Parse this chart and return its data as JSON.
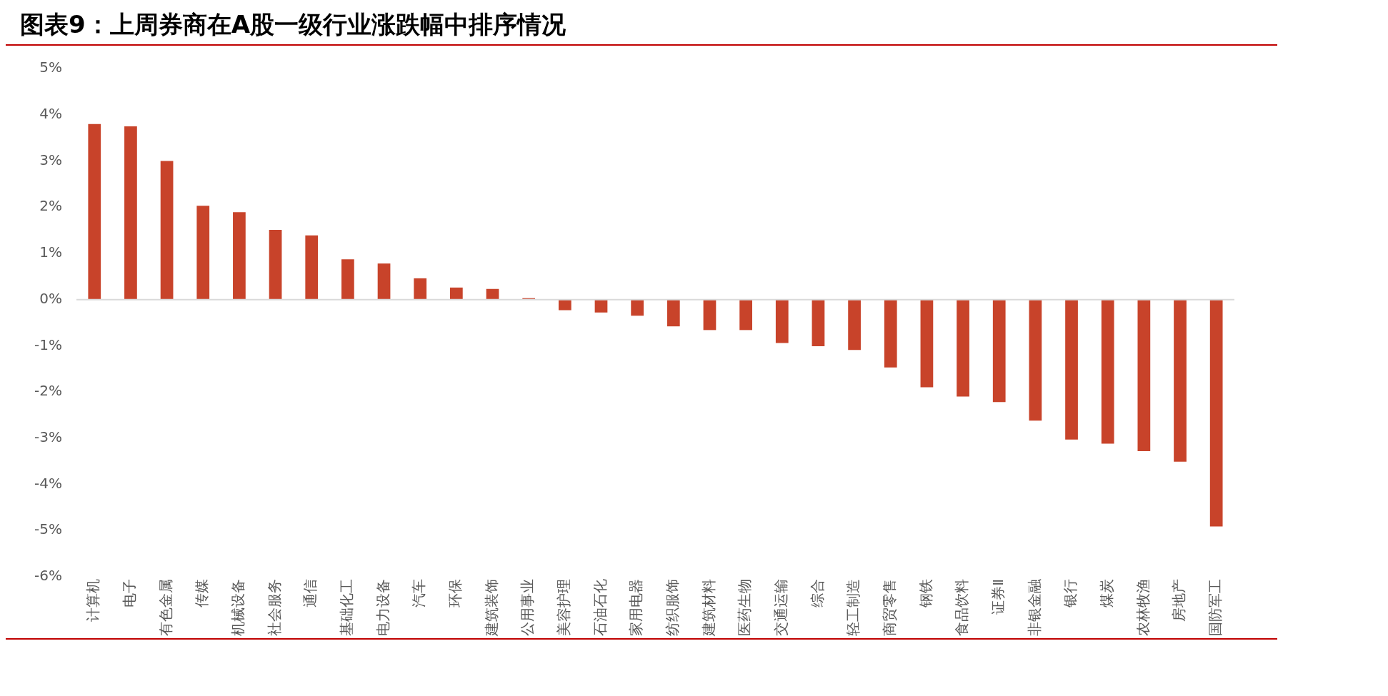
{
  "chart_data": {
    "type": "bar",
    "title": "图表9：上周券商在A股一级行业涨跌幅中排序情况",
    "categories": [
      "计算机",
      "电子",
      "有色金属",
      "传媒",
      "机械设备",
      "社会服务",
      "通信",
      "基础化工",
      "电力设备",
      "汽车",
      "环保",
      "建筑装饰",
      "公用事业",
      "美容护理",
      "石油石化",
      "家用电器",
      "纺织服饰",
      "建筑材料",
      "医药生物",
      "交通运输",
      "综合",
      "轻工制造",
      "商贸零售",
      "钢铁",
      "食品饮料",
      "证券Ⅱ",
      "非银金融",
      "银行",
      "煤炭",
      "农林牧渔",
      "房地产",
      "国防军工"
    ],
    "values": [
      3.8,
      3.75,
      3.0,
      2.03,
      1.89,
      1.51,
      1.39,
      0.87,
      0.78,
      0.46,
      0.26,
      0.23,
      0.03,
      -0.23,
      -0.28,
      -0.35,
      -0.58,
      -0.66,
      -0.66,
      -0.94,
      -1.01,
      -1.09,
      -1.47,
      -1.9,
      -2.1,
      -2.22,
      -2.62,
      -3.03,
      -3.12,
      -3.28,
      -3.51,
      -4.91
    ],
    "color": "#c8432a",
    "ylim": [
      -6,
      5
    ],
    "yticks": [
      {
        "value": -6,
        "label": "-6%"
      },
      {
        "value": -5,
        "label": "-5%"
      },
      {
        "value": -4,
        "label": "-4%"
      },
      {
        "value": -3,
        "label": "-3%"
      },
      {
        "value": -2,
        "label": "-2%"
      },
      {
        "value": -1,
        "label": "-1%"
      },
      {
        "value": 0,
        "label": "0%"
      },
      {
        "value": 1,
        "label": "1%"
      },
      {
        "value": 2,
        "label": "2%"
      },
      {
        "value": 3,
        "label": "3%"
      },
      {
        "value": 4,
        "label": "4%"
      },
      {
        "value": 5,
        "label": "5%"
      }
    ],
    "ref_lines": [
      {
        "axis": "y",
        "value": 0,
        "color": "#d9d9d9"
      }
    ],
    "grid": false,
    "legend": false
  }
}
